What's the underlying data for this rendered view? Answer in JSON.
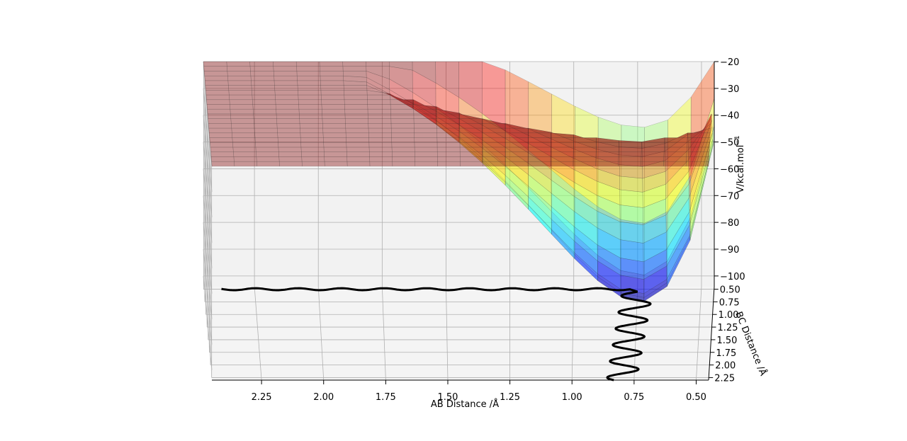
{
  "chart_data": {
    "type": "surface",
    "title": "",
    "xlabel": "AB Distance /Å",
    "ylabel": "BC Distance /Å",
    "zlabel": "V/kcal.mol",
    "zlabel_sup": "−1",
    "x_ticks": [
      "2.25",
      "2.00",
      "1.75",
      "1.50",
      "1.25",
      "1.00",
      "0.75",
      "0.50"
    ],
    "y_ticks": [
      "0.50",
      "0.75",
      "1.00",
      "1.25",
      "1.50",
      "1.75",
      "2.00",
      "2.25"
    ],
    "z_ticks": [
      "−20",
      "−30",
      "−40",
      "−50",
      "−60",
      "−70",
      "−80",
      "−90",
      "−100"
    ],
    "xlim": [
      0.45,
      2.45
    ],
    "ylim": [
      0.45,
      2.3
    ],
    "zlim": [
      -104,
      -20
    ],
    "contour_levels": 20,
    "colormap_surface": "jet",
    "colormap_contours": "viridis",
    "trajectory_color": "#000000"
  }
}
